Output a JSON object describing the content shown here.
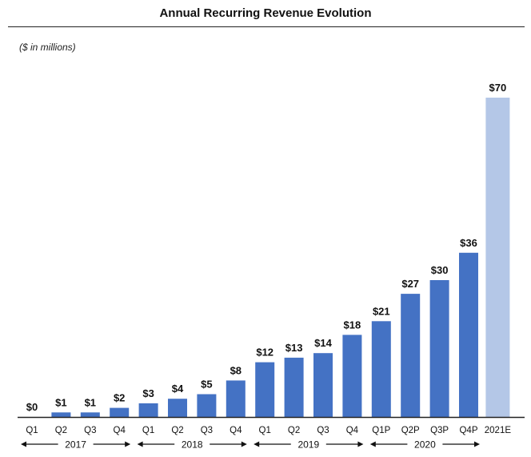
{
  "chart_data": {
    "type": "bar",
    "title": "Annual Recurring Revenue Evolution",
    "units_note": "($ in millions)",
    "categories": [
      "Q1",
      "Q2",
      "Q3",
      "Q4",
      "Q1",
      "Q2",
      "Q3",
      "Q4",
      "Q1",
      "Q2",
      "Q3",
      "Q4",
      "Q1P",
      "Q2P",
      "Q3P",
      "Q4P",
      "2021E"
    ],
    "values": [
      0,
      1,
      1,
      2,
      3,
      4,
      5,
      8,
      12,
      13,
      14,
      18,
      21,
      27,
      30,
      36,
      70
    ],
    "value_labels": [
      "$0",
      "$1",
      "$1",
      "$2",
      "$3",
      "$4",
      "$5",
      "$8",
      "$12",
      "$13",
      "$14",
      "$18",
      "$21",
      "$27",
      "$30",
      "$36",
      "$70"
    ],
    "year_groups": [
      {
        "label": "2017",
        "start": 0,
        "end": 3
      },
      {
        "label": "2018",
        "start": 4,
        "end": 7
      },
      {
        "label": "2019",
        "start": 8,
        "end": 11
      },
      {
        "label": "2020",
        "start": 12,
        "end": 15
      }
    ],
    "colors": {
      "actual": "#4472C4",
      "estimate": "#B4C7E7",
      "axis": "#222222"
    },
    "estimate_indices": [
      16
    ],
    "ylim": [
      0,
      70
    ],
    "grid": false,
    "legend": "none"
  }
}
